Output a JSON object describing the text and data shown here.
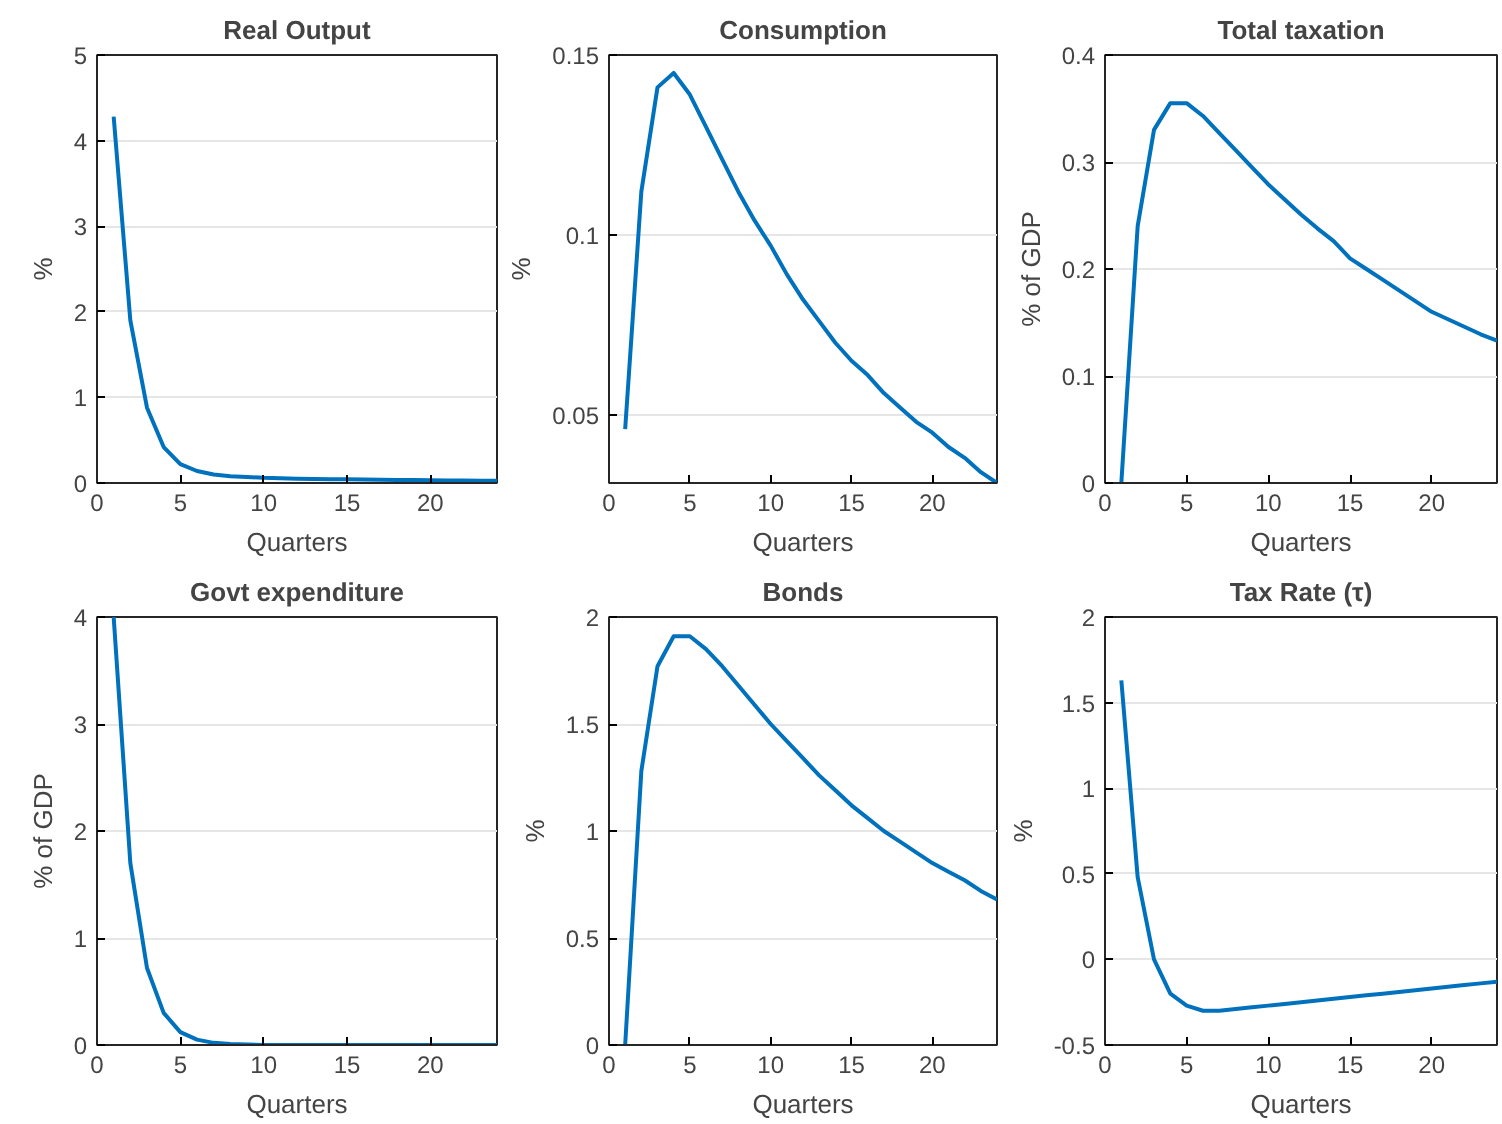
{
  "chart_data": [
    {
      "type": "line",
      "title": "Real Output",
      "xlabel": "Quarters",
      "ylabel": "%",
      "xlim": [
        0,
        24
      ],
      "xticks": [
        0,
        5,
        10,
        15,
        20
      ],
      "ylim": [
        0,
        5
      ],
      "yticks": [
        0,
        1,
        2,
        3,
        4,
        5
      ],
      "grid": "y",
      "x": [
        1,
        2,
        3,
        4,
        5,
        6,
        7,
        8,
        9,
        10,
        11,
        12,
        13,
        14,
        15,
        16,
        17,
        18,
        19,
        20,
        21,
        22,
        23,
        24
      ],
      "series": [
        {
          "color": "#0072bd",
          "values": [
            4.28,
            1.9,
            0.88,
            0.42,
            0.22,
            0.14,
            0.1,
            0.08,
            0.07,
            0.06,
            0.055,
            0.05,
            0.048,
            0.045,
            0.043,
            0.04,
            0.038,
            0.036,
            0.034,
            0.032,
            0.03,
            0.028,
            0.026,
            0.025
          ]
        }
      ]
    },
    {
      "type": "line",
      "title": "Consumption",
      "xlabel": "Quarters",
      "ylabel": "%",
      "xlim": [
        0,
        24
      ],
      "xticks": [
        0,
        5,
        10,
        15,
        20
      ],
      "ylim": [
        0.031,
        0.15
      ],
      "yticks": [
        0.05,
        0.1,
        0.15
      ],
      "grid": "y",
      "x": [
        1,
        2,
        3,
        4,
        5,
        6,
        7,
        8,
        9,
        10,
        11,
        12,
        13,
        14,
        15,
        16,
        17,
        18,
        19,
        20,
        21,
        22,
        23,
        24
      ],
      "series": [
        {
          "color": "#0072bd",
          "values": [
            0.046,
            0.112,
            0.141,
            0.145,
            0.139,
            0.13,
            0.121,
            0.112,
            0.104,
            0.097,
            0.089,
            0.082,
            0.076,
            0.07,
            0.065,
            0.061,
            0.056,
            0.052,
            0.048,
            0.045,
            0.041,
            0.038,
            0.034,
            0.031
          ]
        }
      ]
    },
    {
      "type": "line",
      "title": "Total taxation",
      "xlabel": "Quarters",
      "ylabel": "% of GDP",
      "xlim": [
        0,
        24
      ],
      "xticks": [
        0,
        5,
        10,
        15,
        20
      ],
      "ylim": [
        0,
        0.4
      ],
      "yticks": [
        0,
        0.1,
        0.2,
        0.3,
        0.4
      ],
      "grid": "y",
      "x": [
        1,
        2,
        3,
        4,
        5,
        6,
        7,
        8,
        9,
        10,
        11,
        12,
        13,
        14,
        15,
        16,
        17,
        18,
        19,
        20,
        21,
        22,
        23,
        24
      ],
      "series": [
        {
          "color": "#0072bd",
          "values": [
            0,
            0.24,
            0.33,
            0.355,
            0.355,
            0.343,
            0.327,
            0.311,
            0.295,
            0.279,
            0.265,
            0.251,
            0.238,
            0.226,
            0.21,
            0.2,
            0.19,
            0.18,
            0.17,
            0.16,
            0.153,
            0.146,
            0.139,
            0.133
          ]
        }
      ]
    },
    {
      "type": "line",
      "title": "Govt expenditure",
      "xlabel": "Quarters",
      "ylabel": "% of GDP",
      "xlim": [
        0,
        24
      ],
      "xticks": [
        0,
        5,
        10,
        15,
        20
      ],
      "ylim": [
        0,
        4
      ],
      "yticks": [
        0,
        1,
        2,
        3,
        4
      ],
      "grid": "y",
      "x": [
        1,
        2,
        3,
        4,
        5,
        6,
        7,
        8,
        9,
        10,
        11,
        12,
        13,
        14,
        15,
        16,
        17,
        18,
        19,
        20,
        21,
        22,
        23,
        24
      ],
      "series": [
        {
          "color": "#0072bd",
          "values": [
            4.0,
            1.7,
            0.72,
            0.3,
            0.12,
            0.05,
            0.02,
            0.01,
            0.005,
            0,
            0,
            0,
            0,
            0,
            0,
            0,
            0,
            0,
            0,
            0,
            0,
            0,
            0,
            0
          ]
        }
      ]
    },
    {
      "type": "line",
      "title": "Bonds",
      "xlabel": "Quarters",
      "ylabel": "%",
      "xlim": [
        0,
        24
      ],
      "xticks": [
        0,
        5,
        10,
        15,
        20
      ],
      "ylim": [
        0,
        2
      ],
      "yticks": [
        0,
        0.5,
        1,
        1.5,
        2
      ],
      "grid": "y",
      "x": [
        1,
        2,
        3,
        4,
        5,
        6,
        7,
        8,
        9,
        10,
        11,
        12,
        13,
        14,
        15,
        16,
        17,
        18,
        19,
        20,
        21,
        22,
        23,
        24
      ],
      "series": [
        {
          "color": "#0072bd",
          "values": [
            0,
            1.28,
            1.77,
            1.91,
            1.91,
            1.85,
            1.77,
            1.68,
            1.59,
            1.5,
            1.42,
            1.34,
            1.26,
            1.19,
            1.12,
            1.06,
            1.0,
            0.95,
            0.9,
            0.85,
            0.81,
            0.77,
            0.72,
            0.68
          ]
        }
      ]
    },
    {
      "type": "line",
      "title": "Tax Rate (τ)",
      "xlabel": "Quarters",
      "ylabel": "%",
      "xlim": [
        0,
        24
      ],
      "xticks": [
        0,
        5,
        10,
        15,
        20
      ],
      "ylim": [
        -0.5,
        2
      ],
      "yticks": [
        -0.5,
        0,
        0.5,
        1,
        1.5,
        2
      ],
      "grid": "y",
      "x": [
        1,
        2,
        3,
        4,
        5,
        6,
        7,
        8,
        9,
        10,
        11,
        12,
        13,
        14,
        15,
        16,
        17,
        18,
        19,
        20,
        21,
        22,
        23,
        24
      ],
      "series": [
        {
          "color": "#0072bd",
          "values": [
            1.63,
            0.48,
            0.0,
            -0.2,
            -0.27,
            -0.3,
            -0.3,
            -0.29,
            -0.28,
            -0.27,
            -0.26,
            -0.25,
            -0.24,
            -0.23,
            -0.22,
            -0.21,
            -0.2,
            -0.19,
            -0.18,
            -0.17,
            -0.16,
            -0.15,
            -0.14,
            -0.13
          ]
        }
      ]
    }
  ]
}
